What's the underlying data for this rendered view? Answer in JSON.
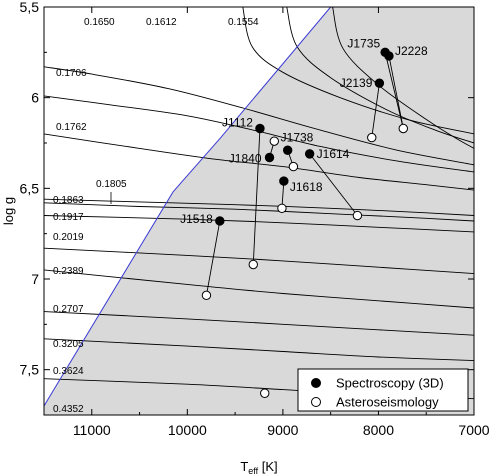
{
  "chart_data": {
    "type": "scatter",
    "x_axis": {
      "label": "T",
      "label_sub": "eff",
      "label_unit": " [K]",
      "lim": [
        11500,
        7000
      ],
      "ticks": [
        11000,
        10000,
        9000,
        8000,
        7000
      ],
      "tick_labels": [
        "11000",
        "10000",
        "9000",
        "8000",
        "7000"
      ]
    },
    "y_axis": {
      "label": "log g",
      "lim": [
        5.5,
        7.75
      ],
      "ticks": [
        5.5,
        6,
        6.5,
        7,
        7.5
      ],
      "tick_labels": [
        "5,5",
        "6",
        "6,5",
        "7",
        "7,5"
      ]
    },
    "instability_boundary": [
      [
        11500,
        7.7
      ],
      [
        10150,
        6.52
      ],
      [
        9650,
        6.22
      ],
      [
        8500,
        5.5
      ]
    ],
    "tracks": [
      {
        "name": "0.1650",
        "points": [
          [
            9420,
            5.5
          ],
          [
            9320,
            5.72
          ],
          [
            9000,
            5.86
          ],
          [
            8400,
            6.0
          ],
          [
            7700,
            6.12
          ],
          [
            7000,
            6.2
          ]
        ]
      },
      {
        "name": "0.1612",
        "points": [
          [
            8960,
            5.5
          ],
          [
            8850,
            5.72
          ],
          [
            8500,
            5.89
          ],
          [
            7900,
            6.07
          ],
          [
            7400,
            6.18
          ],
          [
            7000,
            6.25
          ]
        ]
      },
      {
        "name": "0.1554",
        "points": [
          [
            8480,
            5.5
          ],
          [
            8370,
            5.73
          ],
          [
            8000,
            5.93
          ],
          [
            7500,
            6.12
          ],
          [
            7200,
            6.22
          ],
          [
            7000,
            6.28
          ]
        ]
      },
      {
        "name": "0.1706",
        "points": [
          [
            11500,
            5.83
          ],
          [
            11000,
            5.87
          ],
          [
            10200,
            5.95
          ],
          [
            9400,
            6.06
          ],
          [
            8600,
            6.18
          ],
          [
            7800,
            6.29
          ],
          [
            7000,
            6.37
          ]
        ]
      },
      {
        "name": "0.1762",
        "points": [
          [
            11500,
            5.99
          ],
          [
            10800,
            6.04
          ],
          [
            10000,
            6.1
          ],
          [
            9300,
            6.18
          ],
          [
            8600,
            6.27
          ],
          [
            7800,
            6.35
          ],
          [
            7000,
            6.41
          ]
        ]
      },
      {
        "name": "0.1805",
        "points": [
          [
            11500,
            6.2
          ],
          [
            10500,
            6.28
          ],
          [
            9700,
            6.34
          ],
          [
            9000,
            6.38
          ],
          [
            8200,
            6.44
          ],
          [
            7500,
            6.48
          ],
          [
            7000,
            6.51
          ]
        ]
      },
      {
        "name": "0.1863",
        "points": [
          [
            11500,
            6.56
          ],
          [
            10500,
            6.575
          ],
          [
            9500,
            6.59
          ],
          [
            8500,
            6.61
          ],
          [
            7500,
            6.635
          ],
          [
            7000,
            6.65
          ]
        ]
      },
      {
        "name": "0.1917",
        "points": [
          [
            11500,
            6.58
          ],
          [
            10500,
            6.6
          ],
          [
            9500,
            6.615
          ],
          [
            8500,
            6.64
          ],
          [
            7500,
            6.665
          ],
          [
            7000,
            6.68
          ]
        ]
      },
      {
        "name": "0.2019",
        "points": [
          [
            11500,
            6.65
          ],
          [
            10000,
            6.67
          ],
          [
            9000,
            6.69
          ],
          [
            8000,
            6.715
          ],
          [
            7000,
            6.74
          ]
        ]
      },
      {
        "name": "0.2389",
        "points": [
          [
            11500,
            6.83
          ],
          [
            10000,
            6.87
          ],
          [
            9000,
            6.9
          ],
          [
            8000,
            6.935
          ],
          [
            7000,
            6.97
          ]
        ]
      },
      {
        "name": "0.2707",
        "points": [
          [
            11500,
            6.95
          ],
          [
            10000,
            7.03
          ],
          [
            9000,
            7.08
          ],
          [
            8000,
            7.12
          ],
          [
            7000,
            7.16
          ]
        ]
      },
      {
        "name": "0.3205",
        "points": [
          [
            11500,
            7.18
          ],
          [
            10000,
            7.22
          ],
          [
            9000,
            7.25
          ],
          [
            8000,
            7.28
          ],
          [
            7000,
            7.31
          ]
        ]
      },
      {
        "name": "0.3624",
        "points": [
          [
            11500,
            7.33
          ],
          [
            10000,
            7.37
          ],
          [
            9000,
            7.4
          ],
          [
            8000,
            7.43
          ],
          [
            7000,
            7.45
          ]
        ]
      },
      {
        "name": "0.4352",
        "points": [
          [
            11500,
            7.55
          ],
          [
            10000,
            7.58
          ],
          [
            9000,
            7.61
          ],
          [
            8000,
            7.64
          ],
          [
            7000,
            7.66
          ]
        ]
      }
    ],
    "series": [
      {
        "name": "Spectroscopy (3D)",
        "marker": "filled",
        "points": [
          {
            "label": "J1735",
            "x": 7930,
            "y": 5.75
          },
          {
            "label": "J2228",
            "x": 7890,
            "y": 5.77
          },
          {
            "label": "J2139",
            "x": 7990,
            "y": 5.92
          },
          {
            "label": "J1112",
            "x": 9240,
            "y": 6.17
          },
          {
            "label": "J1738",
            "x": 8950,
            "y": 6.29
          },
          {
            "label": "J1614",
            "x": 8720,
            "y": 6.31
          },
          {
            "label": "J1840",
            "x": 9140,
            "y": 6.33
          },
          {
            "label": "J1618",
            "x": 8990,
            "y": 6.46
          },
          {
            "label": "J1518",
            "x": 9660,
            "y": 6.68
          }
        ]
      },
      {
        "name": "Asteroseismology",
        "marker": "open",
        "points": [
          {
            "x": 7740,
            "y": 6.17
          },
          {
            "x": 8070,
            "y": 6.22
          },
          {
            "x": 9090,
            "y": 6.24
          },
          {
            "x": 8890,
            "y": 6.38
          },
          {
            "x": 9010,
            "y": 6.61
          },
          {
            "x": 8220,
            "y": 6.65
          },
          {
            "x": 9310,
            "y": 6.92
          },
          {
            "x": 9800,
            "y": 7.09
          },
          {
            "x": 9190,
            "y": 7.63
          }
        ]
      }
    ],
    "connections": [
      [
        0,
        0
      ],
      [
        1,
        0
      ],
      [
        2,
        1
      ],
      [
        3,
        6
      ],
      [
        4,
        3
      ],
      [
        5,
        5
      ],
      [
        6,
        2
      ],
      [
        7,
        4
      ],
      [
        8,
        7
      ]
    ],
    "legend": {
      "position": "bottom-right",
      "entries": [
        "Spectroscopy (3D)",
        "Asteroseismology"
      ]
    },
    "colors": {
      "shaded_region": "#d9d9d9",
      "boundary_line": "#3b3bd6",
      "tracks": "#000000"
    }
  }
}
